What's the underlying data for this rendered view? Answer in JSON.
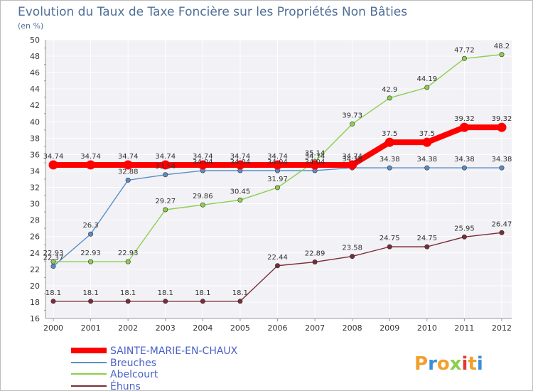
{
  "chart_data": {
    "type": "line",
    "title": "Evolution du Taux de Taxe Foncière sur les Propriétés Non Bâties",
    "ylabel": "(en %)",
    "xlabel": "",
    "x": [
      "2000",
      "2001",
      "2002",
      "2003",
      "2004",
      "2005",
      "2006",
      "2007",
      "2008",
      "2009",
      "2010",
      "2011",
      "2012"
    ],
    "ylim": [
      16,
      50
    ],
    "yticks": [
      16,
      18,
      20,
      22,
      24,
      26,
      28,
      30,
      32,
      34,
      36,
      38,
      40,
      42,
      44,
      46,
      48,
      50
    ],
    "grid": true,
    "legend": "bottom-left",
    "series": [
      {
        "name": "SAINTE-MARIE-EN-CHAUX",
        "color": "#ff0000",
        "values": [
          34.74,
          34.74,
          34.74,
          34.74,
          34.74,
          34.74,
          34.74,
          34.74,
          34.74,
          37.5,
          37.5,
          39.32,
          39.32
        ],
        "labels": [
          "34.74",
          "34.74",
          "34.74",
          "34.74",
          "34.74",
          "34.74",
          "34.74",
          "34.74",
          "34.74",
          "37.5",
          "37.5",
          "39.32",
          "39.32"
        ]
      },
      {
        "name": "Breuches",
        "color": "#5b8ec6",
        "values": [
          22.37,
          26.3,
          32.88,
          33.54,
          34.04,
          34.04,
          34.04,
          34.04,
          34.38,
          34.38,
          34.38,
          34.38,
          34.38
        ],
        "labels": [
          "22.37",
          "26.3",
          "32.88",
          "33.54",
          "34.04",
          "34.04",
          "34.04",
          "34.04",
          "34.38",
          "34.38",
          "34.38",
          "34.38",
          "34.38"
        ]
      },
      {
        "name": "Abelcourt",
        "color": "#8ccf4d",
        "values": [
          22.93,
          22.93,
          22.93,
          29.27,
          29.86,
          30.45,
          31.97,
          35.14,
          39.73,
          42.9,
          44.19,
          47.72,
          48.2
        ],
        "labels": [
          "22.93",
          "22.93",
          "22.93",
          "29.27",
          "29.86",
          "30.45",
          "31.97",
          "35.14",
          "39.73",
          "42.9",
          "44.19",
          "47.72",
          "48.2"
        ]
      },
      {
        "name": "Éhuns",
        "color": "#7a2d36",
        "values": [
          18.1,
          18.1,
          18.1,
          18.1,
          18.1,
          18.1,
          22.44,
          22.89,
          23.58,
          24.75,
          24.75,
          25.95,
          26.47
        ],
        "labels": [
          "18.1",
          "18.1",
          "18.1",
          "18.1",
          "18.1",
          "18.1",
          "22.44",
          "22.89",
          "23.58",
          "24.75",
          "24.75",
          "25.95",
          "26.47"
        ]
      }
    ],
    "legend_entries": [
      "SAINTE-MARIE-EN-CHAUX",
      "Breuches",
      "Abelcourt",
      "Éhuns"
    ]
  },
  "logo": {
    "text": "Proxiti"
  }
}
